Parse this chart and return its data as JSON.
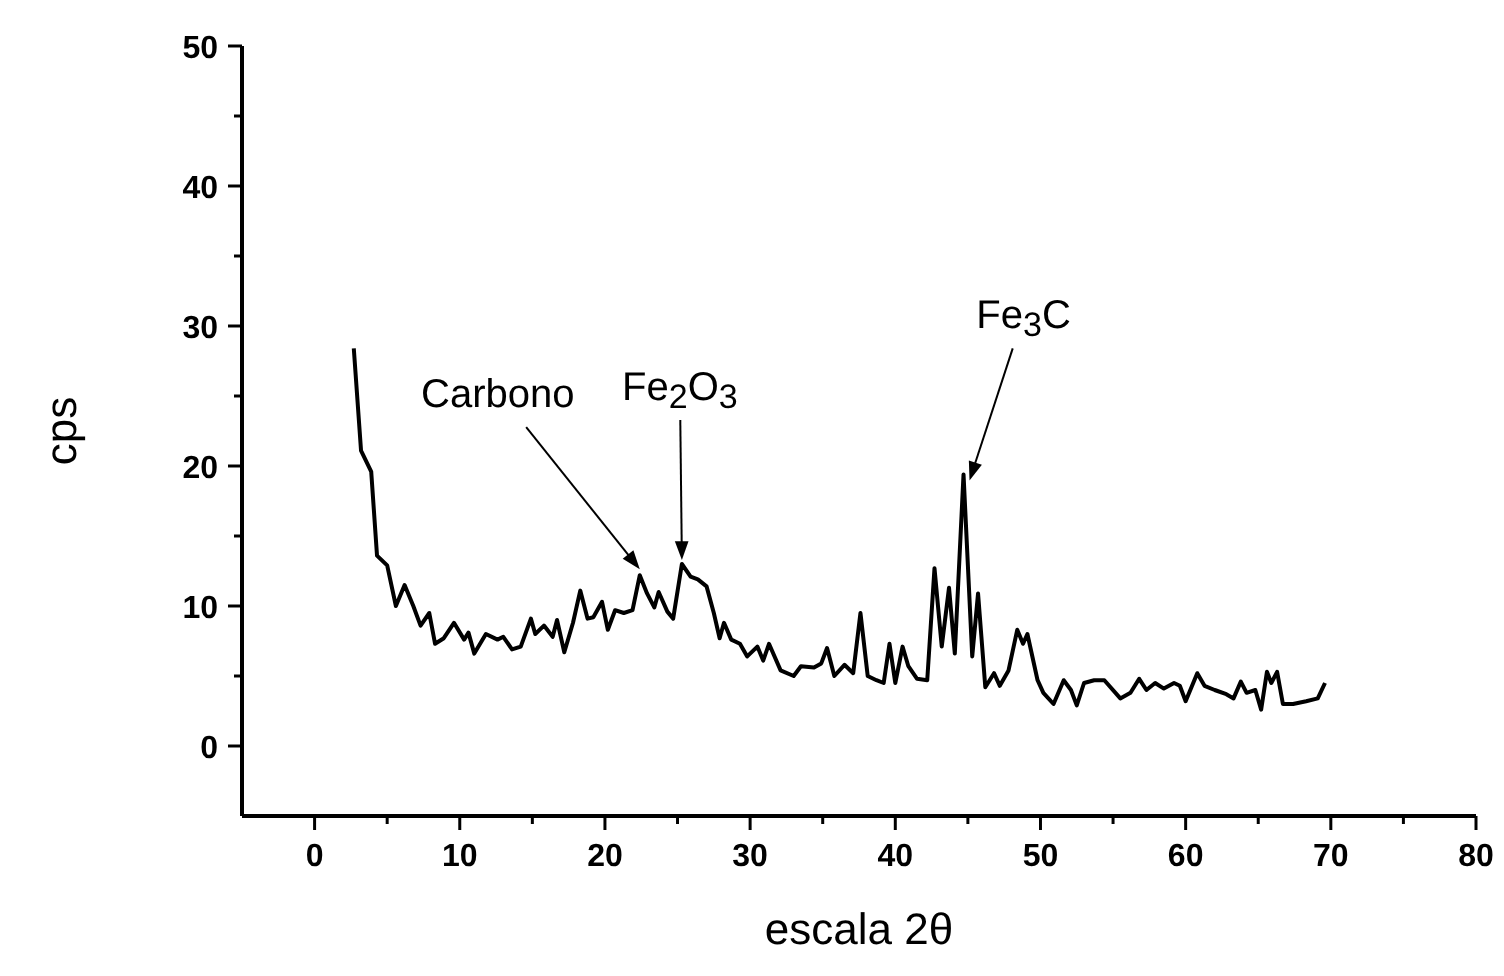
{
  "chart_data": {
    "type": "line",
    "xlabel": "escala 2θ",
    "ylabel": "cps",
    "xlim": [
      -5,
      80
    ],
    "xticks": [
      0,
      {
        "value": 5,
        "label": null
      },
      10,
      {
        "value": 15,
        "label": null
      },
      20,
      {
        "value": 25,
        "label": null
      },
      30,
      {
        "value": 35,
        "label": null
      },
      40,
      {
        "value": 45,
        "label": null
      },
      50,
      {
        "value": 55,
        "label": null
      },
      60,
      {
        "value": 65,
        "label": null
      },
      70,
      {
        "value": 75,
        "label": null
      },
      80
    ],
    "ylim": [
      -5,
      50
    ],
    "yticks": [
      0,
      {
        "value": 5,
        "label": null
      },
      10,
      {
        "value": 15,
        "label": null
      },
      20,
      {
        "value": 25,
        "label": null
      },
      30,
      {
        "value": 35,
        "label": null
      },
      40,
      {
        "value": 45,
        "label": null
      },
      50
    ],
    "grid": false,
    "marker": "none",
    "line_style": "solid",
    "series": [
      {
        "color": "#000000",
        "x": [
          2.7,
          3.2,
          3.9,
          4.3,
          5.0,
          5.6,
          6.2,
          6.8,
          7.3,
          7.9,
          8.3,
          8.9,
          9.6,
          10.3,
          10.6,
          11.0,
          11.8,
          12.6,
          13.0,
          13.6,
          14.2,
          14.9,
          15.2,
          15.8,
          16.4,
          16.7,
          17.2,
          17.8,
          18.3,
          18.8,
          19.2,
          19.8,
          20.2,
          20.7,
          21.3,
          21.9,
          22.4,
          22.9,
          23.4,
          23.7,
          24.3,
          24.7,
          25.3,
          25.9,
          26.4,
          27.0,
          27.5,
          27.9,
          28.2,
          28.7,
          29.3,
          29.8,
          30.5,
          30.9,
          31.3,
          32.1,
          33.0,
          33.5,
          34.4,
          34.9,
          35.3,
          35.8,
          36.5,
          37.1,
          37.6,
          38.1,
          38.7,
          39.2,
          39.6,
          40.0,
          40.5,
          40.9,
          41.5,
          42.2,
          42.7,
          43.2,
          43.7,
          44.1,
          44.7,
          45.3,
          45.7,
          46.2,
          46.8,
          47.2,
          47.8,
          48.4,
          48.8,
          49.1,
          49.8,
          50.2,
          50.9,
          51.6,
          52.1,
          52.5,
          53.0,
          53.7,
          54.4,
          55.5,
          56.2,
          56.8,
          57.3,
          57.9,
          58.5,
          59.2,
          59.6,
          60.0,
          60.8,
          61.3,
          62.0,
          62.8,
          63.3,
          63.8,
          64.2,
          64.8,
          65.2,
          65.6,
          65.9,
          66.3,
          66.7,
          67.4,
          68.3,
          69.1,
          69.6
        ],
        "values": [
          28.4,
          21.1,
          19.6,
          13.6,
          12.9,
          10,
          11.5,
          10,
          8.6,
          9.5,
          7.3,
          7.7,
          8.8,
          7.6,
          8.1,
          6.6,
          8,
          7.6,
          7.8,
          6.9,
          7.1,
          9.1,
          8.0,
          8.6,
          7.8,
          9,
          6.7,
          8.8,
          11.1,
          9.1,
          9.2,
          10.3,
          8.3,
          9.7,
          9.5,
          9.7,
          12.2,
          10.9,
          9.9,
          11,
          9.6,
          9.1,
          13,
          12.1,
          11.9,
          11.4,
          9.5,
          7.7,
          8.8,
          7.6,
          7.3,
          6.4,
          7.1,
          6.1,
          7.3,
          5.4,
          5.0,
          5.7,
          5.6,
          5.9,
          7,
          5,
          5.8,
          5.2,
          9.5,
          5.0,
          4.7,
          4.5,
          7.3,
          4.5,
          7.1,
          5.7,
          4.8,
          4.7,
          12.7,
          7.1,
          11.3,
          6.6,
          19.4,
          6.4,
          10.9,
          4.2,
          5.2,
          4.3,
          5.4,
          8.3,
          7.3,
          8.0,
          4.7,
          3.8,
          3.0,
          4.7,
          4.0,
          2.9,
          4.5,
          4.7,
          4.7,
          3.4,
          3.8,
          4.8,
          4,
          4.5,
          4.1,
          4.5,
          4.3,
          3.2,
          5.2,
          4.3,
          4,
          3.7,
          3.4,
          4.6,
          3.8,
          4,
          2.6,
          5.3,
          4.5,
          5.3,
          3.0,
          3.0,
          3.2,
          3.4,
          4.5
        ]
      }
    ],
    "annotations": [
      {
        "text": "Carbono",
        "x": 22.4,
        "y": 12.2
      },
      {
        "text": "Fe$_{2}$O$_{3}$",
        "x": 25.3,
        "y": 13
      },
      {
        "text": "Fe$_{3}$C",
        "x": 44.7,
        "y": 19.4
      }
    ]
  }
}
